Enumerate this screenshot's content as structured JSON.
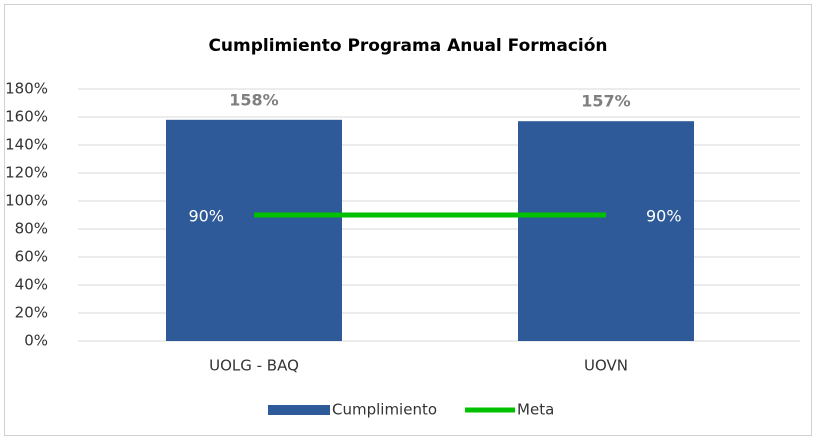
{
  "chart_data": {
    "type": "bar",
    "title": "Cumplimiento Programa Anual Formación",
    "categories": [
      "UOLG - BAQ",
      "UOVN"
    ],
    "series": [
      {
        "name": "Cumplimiento",
        "type": "bar",
        "color": "#2e5a99",
        "values": [
          158,
          157
        ],
        "value_labels": [
          "158%",
          "157%"
        ]
      },
      {
        "name": "Meta",
        "type": "line",
        "color": "#00c000",
        "values": [
          90,
          90
        ],
        "value_labels": [
          "90%",
          "90%"
        ]
      }
    ],
    "ylim": [
      0,
      180
    ],
    "yticks": [
      {
        "value": 0,
        "label": "0%"
      },
      {
        "value": 20,
        "label": "20%"
      },
      {
        "value": 40,
        "label": "40%"
      },
      {
        "value": 60,
        "label": "60%"
      },
      {
        "value": 80,
        "label": "80%"
      },
      {
        "value": 100,
        "label": "100%"
      },
      {
        "value": 120,
        "label": "120%"
      },
      {
        "value": 140,
        "label": "140%"
      },
      {
        "value": 160,
        "label": "160%"
      },
      {
        "value": 180,
        "label": "180%"
      }
    ],
    "grid": true,
    "legend": "bottom"
  }
}
